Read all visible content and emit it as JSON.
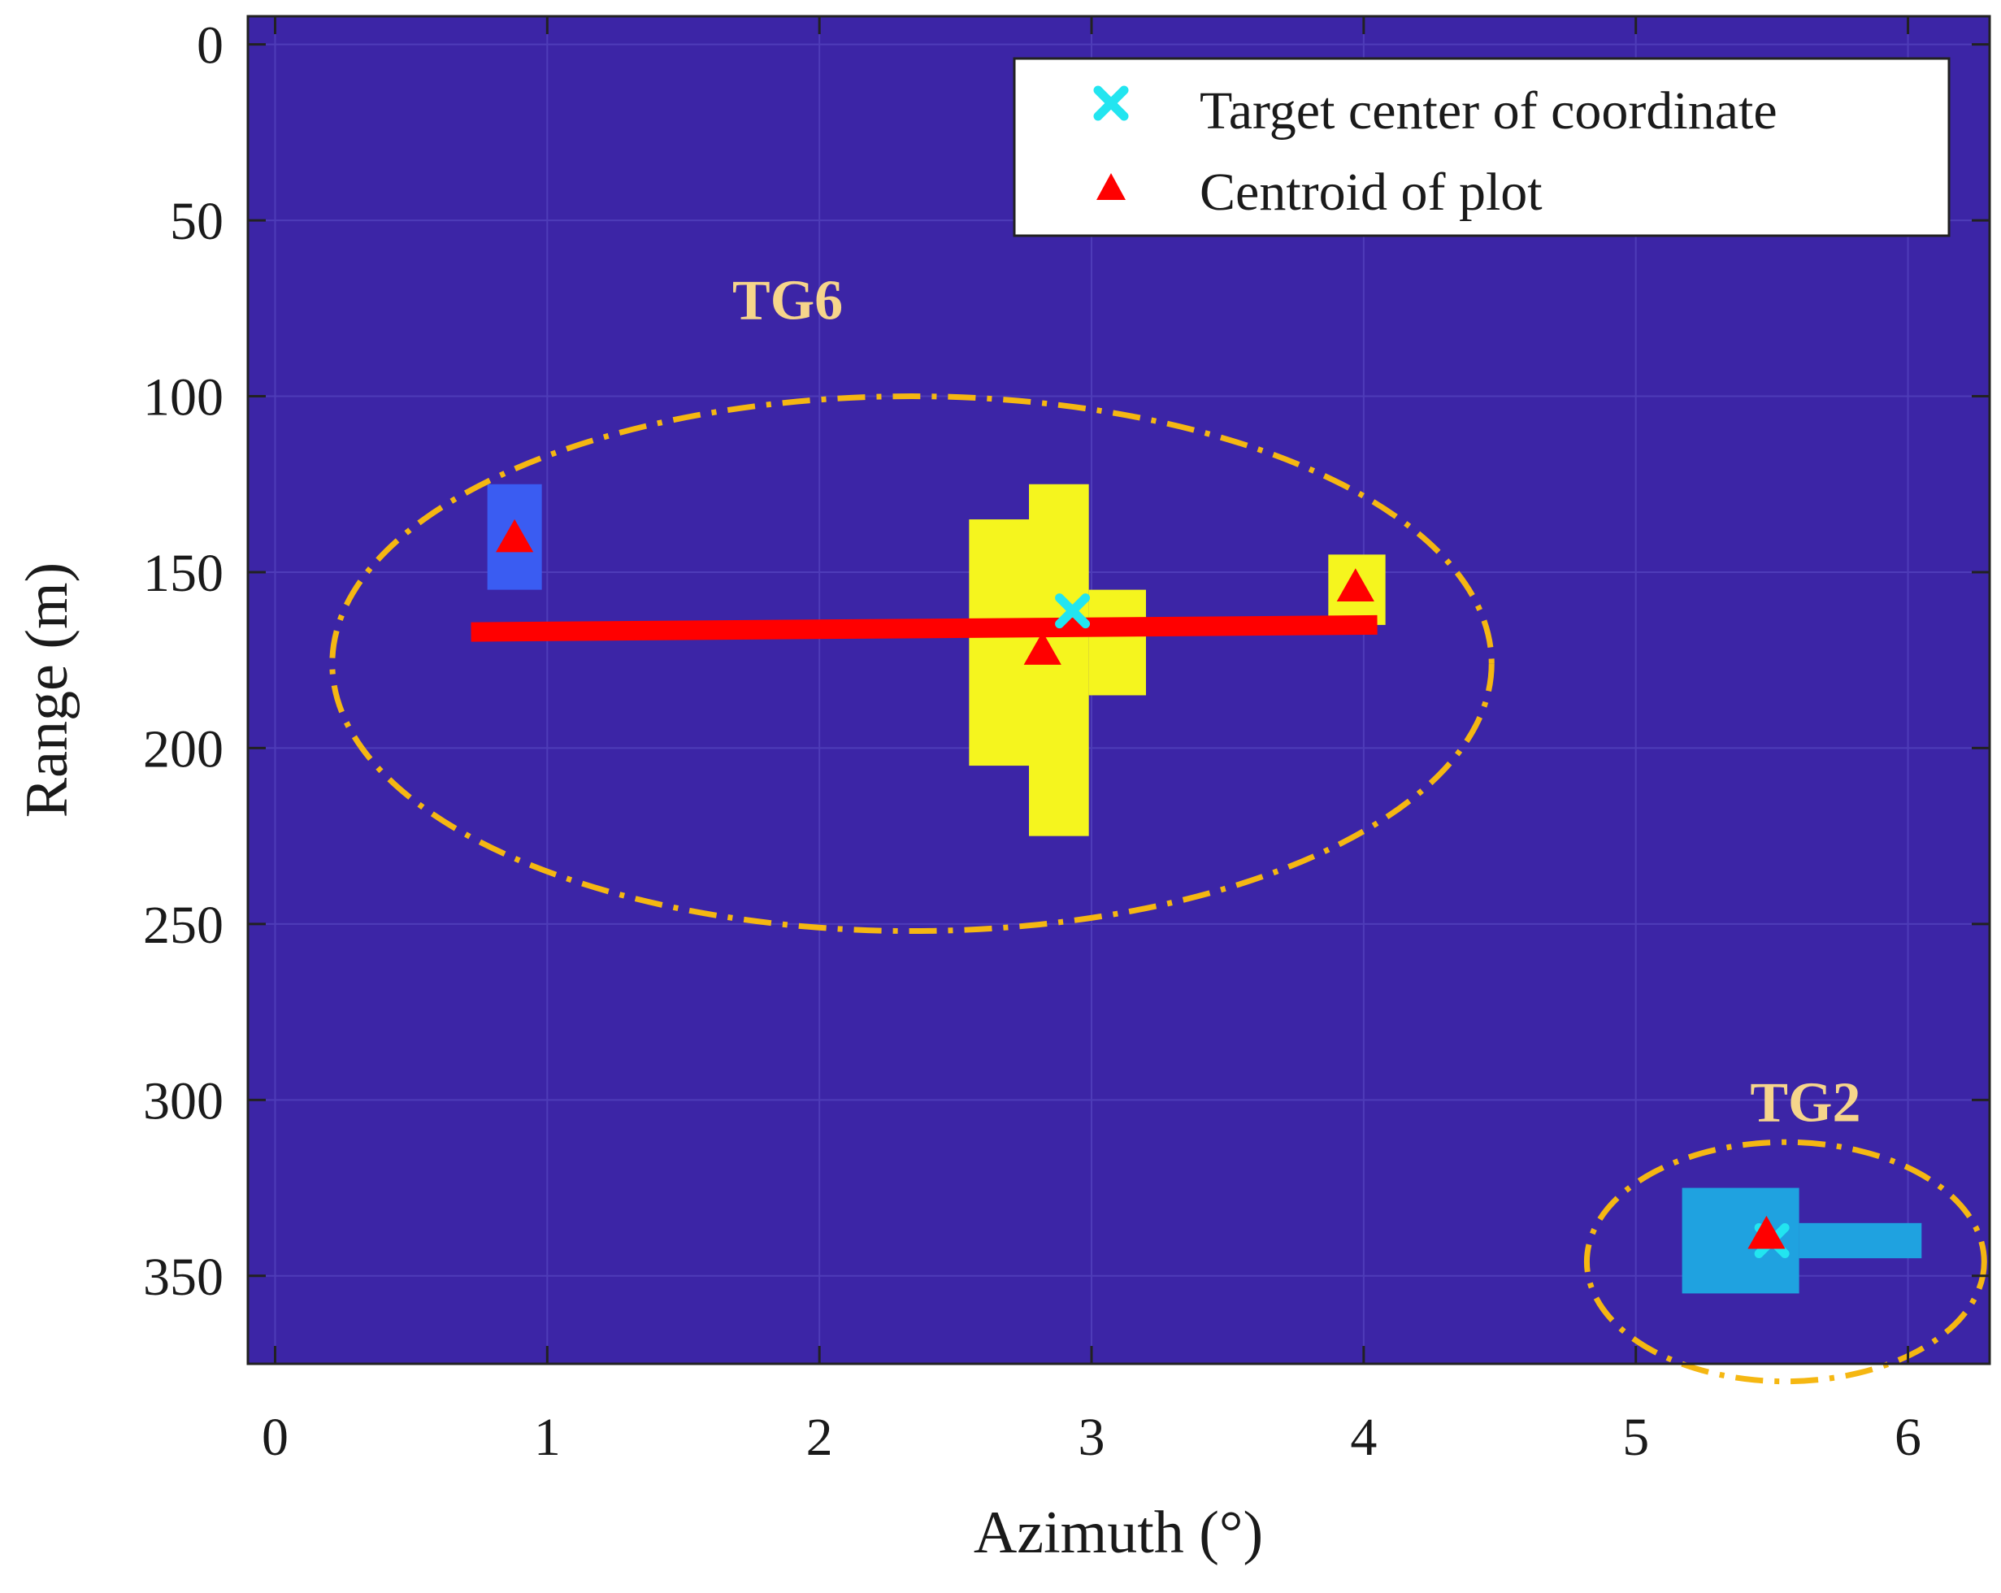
{
  "chart_data": {
    "type": "scatter",
    "xlabel": "Azimuth (°)",
    "ylabel": "Range (m)",
    "xlim": [
      -0.1,
      6.3
    ],
    "ylim": [
      375,
      -8
    ],
    "y_direction": "reversed",
    "xticks": [
      0,
      1,
      2,
      3,
      4,
      5,
      6
    ],
    "xtick_labels": [
      "0",
      "1",
      "2",
      "3",
      "4",
      "5",
      "6"
    ],
    "yticks": [
      0,
      50,
      100,
      150,
      200,
      250,
      300,
      350
    ],
    "ytick_labels": [
      "0",
      "50",
      "100",
      "150",
      "200",
      "250",
      "300",
      "350"
    ],
    "grid": true,
    "colors": {
      "background": "#3c25a6",
      "grid": "#4e3cb8",
      "frame": "#222222",
      "blue_cells": "#3a5cf2",
      "yellow_cells": "#f5f51e",
      "cyan_cells": "#1fa2e0",
      "marker_x": "#22e5f0",
      "marker_triangle": "#ff0000",
      "fit_line": "#ff0000",
      "ellipse": "#f5b712",
      "annotation": "#f6d58b"
    },
    "cells": [
      {
        "group": "TG6",
        "color": "blue_cells",
        "az": [
          0.78,
          0.98
        ],
        "range": [
          125,
          155
        ]
      },
      {
        "group": "TG6",
        "color": "yellow_cells",
        "az": [
          2.55,
          2.77
        ],
        "range": [
          135,
          205
        ]
      },
      {
        "group": "TG6",
        "color": "yellow_cells",
        "az": [
          2.77,
          2.99
        ],
        "range": [
          125,
          225
        ]
      },
      {
        "group": "TG6",
        "color": "yellow_cells",
        "az": [
          2.99,
          3.2
        ],
        "range": [
          155,
          185
        ]
      },
      {
        "group": "TG6",
        "color": "yellow_cells",
        "az": [
          3.87,
          4.08
        ],
        "range": [
          145,
          165
        ]
      },
      {
        "group": "TG2",
        "color": "cyan_cells",
        "az": [
          5.17,
          5.6
        ],
        "range": [
          325,
          355
        ]
      },
      {
        "group": "TG2",
        "color": "cyan_cells",
        "az": [
          5.6,
          6.05
        ],
        "range": [
          335,
          345
        ]
      }
    ],
    "series": [
      {
        "name": "Target center of coordinate",
        "marker": "x",
        "points": [
          {
            "az": 2.93,
            "range": 161
          },
          {
            "az": 5.5,
            "range": 340
          }
        ]
      },
      {
        "name": "Centroid of plot",
        "marker": "triangle",
        "points": [
          {
            "az": 0.88,
            "range": 140
          },
          {
            "az": 2.82,
            "range": 172
          },
          {
            "az": 3.97,
            "range": 154
          },
          {
            "az": 5.48,
            "range": 338
          }
        ]
      }
    ],
    "fit_line": {
      "az": [
        0.72,
        4.05
      ],
      "range": [
        167,
        165
      ]
    },
    "ellipses": [
      {
        "label": "TG6",
        "center": {
          "az": 2.34,
          "range": 176
        },
        "radius_az": 2.13,
        "radius_range": 76
      },
      {
        "label": "TG2",
        "center": {
          "az": 5.55,
          "range": 346
        },
        "radius_az": 0.73,
        "radius_range": 34
      }
    ],
    "annotations": [
      {
        "text": "TG6",
        "az": 1.68,
        "range": 78
      },
      {
        "text": "TG2",
        "az": 5.42,
        "range": 306
      }
    ],
    "legend": {
      "position": "top-right",
      "entries": [
        "Target center of coordinate",
        "Centroid of plot"
      ]
    }
  }
}
